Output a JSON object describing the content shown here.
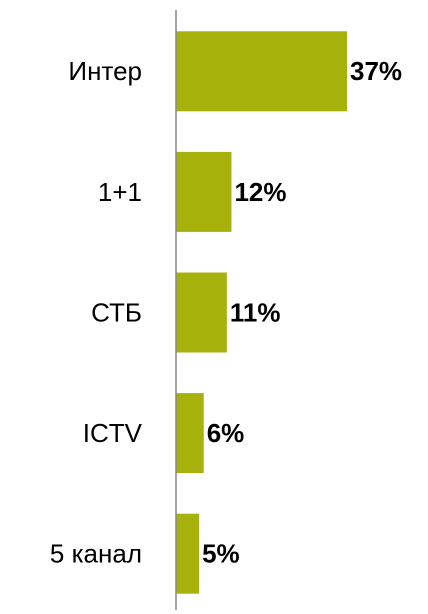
{
  "chart_data": {
    "type": "bar",
    "orientation": "horizontal",
    "categories": [
      "Интер",
      "1+1",
      "СТБ",
      "ICTV",
      "5 канал"
    ],
    "values": [
      37,
      12,
      11,
      6,
      5
    ],
    "value_labels": [
      "37%",
      "12%",
      "11%",
      "6%",
      "5%"
    ],
    "color": "#a6b20b"
  }
}
